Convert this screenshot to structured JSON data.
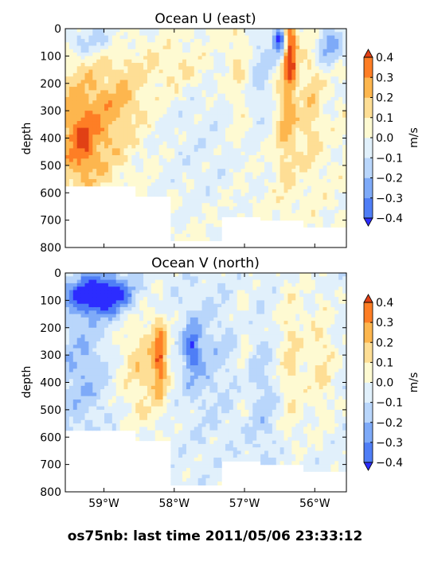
{
  "chart_data": [
    {
      "type": "heatmap",
      "subtype": "filled-contour",
      "title": "Ocean U (east)",
      "ylabel": "depth",
      "ylim": [
        800,
        0
      ],
      "yticks": [
        "0",
        "100",
        "200",
        "300",
        "400",
        "500",
        "600",
        "700",
        "800"
      ],
      "xlim": [
        -59.55,
        -55.55
      ],
      "xticks": [],
      "colorbar": {
        "label": "m/s",
        "levels": [
          -0.4,
          -0.3,
          -0.2,
          -0.1,
          0.0,
          0.1,
          0.2,
          0.3,
          0.4
        ],
        "tick_labels": [
          "0.4",
          "0.3",
          "0.2",
          "0.1",
          "0.0",
          "−0.1",
          "−0.2",
          "−0.3",
          "−0.4"
        ],
        "colors": [
          "#2c2cff",
          "#4f7ef6",
          "#7eaaf8",
          "#b9d6fb",
          "#e1f0fb",
          "#fefad2",
          "#fede95",
          "#fdb64e",
          "#fe7e25",
          "#e14015"
        ]
      },
      "features": [
        {
          "region": "west, 0-80 m",
          "value": -0.15
        },
        {
          "region": "-59.5 to -58.8 W, 200-580 m",
          "value": 0.25
        },
        {
          "region": "-59.5 to -58.9 W, 300-560 m core",
          "value": 0.35
        },
        {
          "region": "-56.5 W, 0-100 m",
          "value": -0.4
        },
        {
          "region": "-56.4 W, 0-200 m",
          "value": 0.35
        },
        {
          "region": "-56.3 W, 150-580 m",
          "value": 0.15
        },
        {
          "region": "-55.6 W, 0-140 m",
          "value": -0.2
        }
      ]
    },
    {
      "type": "heatmap",
      "subtype": "filled-contour",
      "title": "Ocean V (north)",
      "ylabel": "depth",
      "ylim": [
        800,
        0
      ],
      "yticks": [
        "0",
        "100",
        "200",
        "300",
        "400",
        "500",
        "600",
        "700",
        "800"
      ],
      "xlim": [
        -59.55,
        -55.55
      ],
      "xticks": [
        "59°W",
        "58°W",
        "57°W",
        "56°W"
      ],
      "colorbar": {
        "label": "m/s",
        "levels": [
          -0.4,
          -0.3,
          -0.2,
          -0.1,
          0.0,
          0.1,
          0.2,
          0.3,
          0.4
        ],
        "tick_labels": [
          "0.4",
          "0.3",
          "0.2",
          "0.1",
          "0.0",
          "−0.1",
          "−0.2",
          "−0.3",
          "−0.4"
        ],
        "colors": [
          "#2c2cff",
          "#4f7ef6",
          "#7eaaf8",
          "#b9d6fb",
          "#e1f0fb",
          "#fefad2",
          "#fede95",
          "#fdb64e",
          "#fe7e25",
          "#e14015"
        ]
      },
      "features": [
        {
          "region": "-59.5 to -58.8 W, 20-160 m",
          "value": -0.45
        },
        {
          "region": "-58.5 to -57.9 W, 120-600 m",
          "value": 0.2
        },
        {
          "region": "-58.2 W, 200-500 m core",
          "value": 0.4
        },
        {
          "region": "-57.7 W, 200-420 m",
          "value": -0.25
        },
        {
          "region": "-56.3 to -55.7 W, 0-650 m",
          "value": 0.12
        }
      ]
    }
  ],
  "footer": {
    "text": "os75nb: last time 2011/05/06 23:33:12"
  }
}
